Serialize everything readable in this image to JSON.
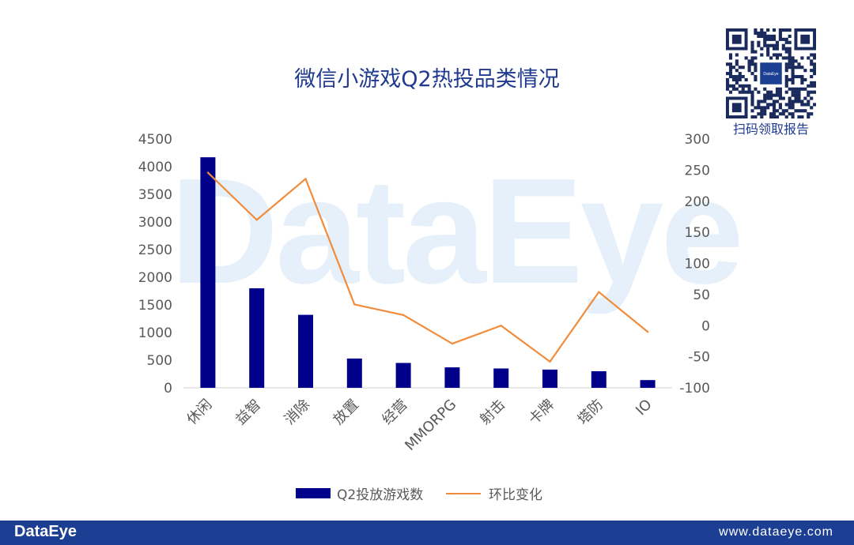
{
  "watermark": "DataEye",
  "qr": {
    "caption": "扫码领取报告",
    "center_label": "DataEye"
  },
  "chart_data": {
    "type": "bar",
    "title": "微信小游戏Q2热投品类情况",
    "categories": [
      "休闲",
      "益智",
      "消除",
      "放置",
      "经营",
      "MMORPG",
      "射击",
      "卡牌",
      "塔防",
      "IO"
    ],
    "series": [
      {
        "name": "Q2投放游戏数",
        "type": "bar",
        "axis": "left",
        "color": "#00008b",
        "values": [
          4170,
          1800,
          1320,
          530,
          450,
          370,
          350,
          330,
          300,
          140
        ]
      },
      {
        "name": "环比变化",
        "type": "line",
        "axis": "right",
        "color": "#f08c3c",
        "values": [
          246,
          170,
          236,
          34,
          17,
          -29,
          0,
          -58,
          54,
          -10
        ]
      }
    ],
    "y_left": {
      "lim": [
        0,
        4500
      ],
      "ticks": [
        "0",
        "500",
        "1000",
        "1500",
        "2000",
        "2500",
        "3000",
        "3500",
        "4000",
        "4500"
      ]
    },
    "y_right": {
      "lim": [
        -100,
        300
      ],
      "ticks": [
        "-100",
        "-50",
        "0",
        "50",
        "100",
        "150",
        "200",
        "250",
        "300"
      ]
    },
    "grid": false,
    "legend_position": "bottom"
  },
  "footer": {
    "logo": "DataEye",
    "url": "www.dataeye.com"
  }
}
